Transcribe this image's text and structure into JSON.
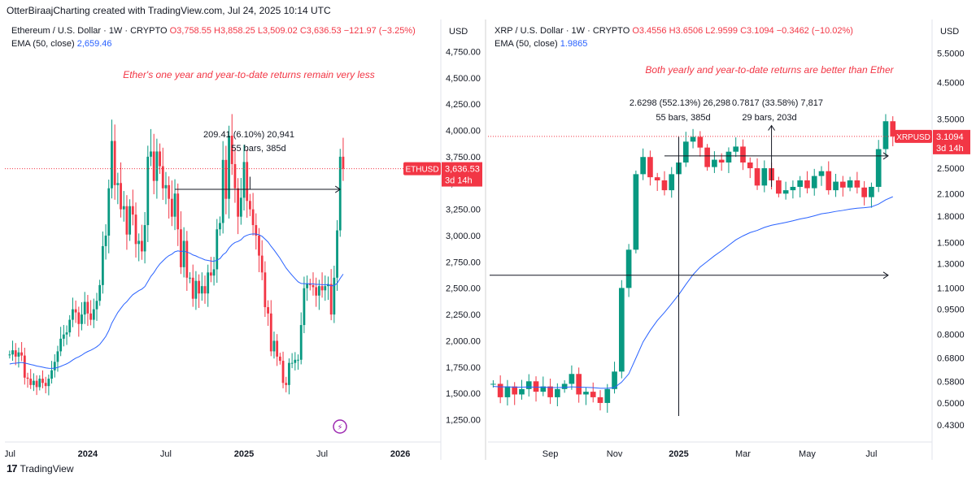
{
  "header": "OtterBiraajCharting created with TradingView.com, Jul 24, 2025 10:14 UTC",
  "footer_brand": "TradingView",
  "footer_logo": "17",
  "colors": {
    "up": "#089981",
    "down": "#f23645",
    "ema": "#2962ff",
    "text": "#131722",
    "annotation": "#f23645",
    "grid": "#f0f3fa"
  },
  "chart_data": [
    {
      "type": "candlestick",
      "symbol_line": "Ethereum / U.S. Dollar · 1W · CRYPTO",
      "ohlc": {
        "o": "O3,758.55",
        "h": "H3,858.25",
        "l": "L3,509.02",
        "c": "C3,636.53",
        "chg": "−121.97 (−3.25%)"
      },
      "ema_label": "EMA (50, close)",
      "ema_value": "2,659.46",
      "currency": "USD",
      "annotation": "Ether's one year and year-to-date returns remain very less",
      "measure_line1": "209.41 (6.10%) 20,941",
      "measure_line2": "55 bars, 385d",
      "price_tag": {
        "ticker": "ETHUSD",
        "price": "3,636.53",
        "time": "3d 14h",
        "value": 3636.53
      },
      "ylim": [
        1100,
        4900
      ],
      "y_ticks": [
        1250,
        1500,
        1750,
        2000,
        2250,
        2500,
        2750,
        3000,
        3250,
        3500,
        3750,
        4000,
        4250,
        4500,
        4750
      ],
      "y_tick_labels": [
        "1,250.00",
        "1,500.00",
        "1,750.00",
        "2,000.00",
        "2,250.00",
        "2,500.00",
        "2,750.00",
        "3,000.00",
        "3,250.00",
        "3,500.00",
        "3,750.00",
        "4,000.00",
        "4,250.00",
        "4,500.00",
        "4,750.00"
      ],
      "x_labels": [
        {
          "t": "Jul",
          "i": 0
        },
        {
          "t": "2024",
          "i": 26
        },
        {
          "t": "Jul",
          "i": 52
        },
        {
          "t": "2025",
          "i": 78
        },
        {
          "t": "Jul",
          "i": 104
        },
        {
          "t": "2026",
          "i": 130
        }
      ],
      "n_slots": 144,
      "closes": [
        1870,
        1910,
        1850,
        1890,
        1860,
        1650,
        1640,
        1580,
        1620,
        1560,
        1640,
        1600,
        1570,
        1640,
        1720,
        1800,
        1900,
        2020,
        2060,
        2080,
        2200,
        2300,
        2270,
        2160,
        2250,
        2370,
        2260,
        2200,
        2300,
        2380,
        2530,
        2900,
        3000,
        3450,
        3900,
        3480,
        3500,
        3250,
        3280,
        3010,
        3280,
        3200,
        2920,
        2950,
        2850,
        3100,
        3750,
        3800,
        3520,
        3800,
        3660,
        3450,
        3480,
        3350,
        3180,
        3400,
        3060,
        2700,
        2950,
        2600,
        2600,
        2400,
        2570,
        2450,
        2520,
        2450,
        2650,
        2620,
        2680,
        3060,
        3120,
        3720,
        3350,
        3950,
        3680,
        3450,
        3180,
        3360,
        3700,
        3330,
        3250,
        3100,
        3000,
        2810,
        2650,
        2320,
        2260,
        1900,
        2000,
        1850,
        1810,
        1600,
        1580,
        1790,
        1790,
        1820,
        1820,
        2150,
        2500,
        2540,
        2530,
        2510,
        2430,
        2520,
        2480,
        2520,
        2540,
        2250,
        2600,
        3050,
        3750,
        3636.53
      ]
    },
    {
      "type": "candlestick",
      "symbol_line": "XRP / U.S. Dollar · 1W · CRYPTO",
      "ohlc": {
        "o": "O3.4556",
        "h": "H3.6506",
        "l": "L2.9599",
        "c": "C3.1094",
        "chg": "−0.3462 (−10.02%)"
      },
      "ema_label": "EMA (50, close)",
      "ema_value": "1.9865",
      "currency": "USD",
      "annotation": "Both yearly and year-to-date returns are better than Ether",
      "measure1_line1": "2.6298 (552.13%) 26,298",
      "measure1_line2": "55 bars, 385d",
      "measure2_line1": "0.7817 (33.58%) 7,817",
      "measure2_line2": "29 bars, 203d",
      "price_tag": {
        "ticker": "XRPUSD",
        "price": "3.1094",
        "time": "3d 14h",
        "value": 3.1094
      },
      "scale": "log",
      "ylim": [
        0.4,
        6.2
      ],
      "y_ticks": [
        0.43,
        0.5,
        0.58,
        0.68,
        0.8,
        0.95,
        1.1,
        1.3,
        1.5,
        1.8,
        2.1,
        2.5,
        3.1094,
        3.5,
        4.5,
        5.5
      ],
      "y_tick_labels": [
        "0.4300",
        "0.5000",
        "0.5800",
        "0.6800",
        "0.8000",
        "0.9500",
        "1.1000",
        "1.3000",
        "1.5000",
        "1.8000",
        "2.1000",
        "2.5000",
        "",
        "3.5000",
        "4.5000",
        "5.5000"
      ],
      "x_labels": [
        {
          "t": "Sep",
          "i": 8
        },
        {
          "t": "Nov",
          "i": 17
        },
        {
          "t": "2025",
          "i": 26
        },
        {
          "t": "Mar",
          "i": 35
        },
        {
          "t": "May",
          "i": 44
        },
        {
          "t": "Jul",
          "i": 53
        }
      ],
      "n_slots": 62,
      "closes": [
        0.57,
        0.52,
        0.56,
        0.53,
        0.55,
        0.58,
        0.54,
        0.56,
        0.52,
        0.55,
        0.57,
        0.61,
        0.53,
        0.54,
        0.52,
        0.5,
        0.55,
        0.62,
        1.1,
        1.43,
        2.4,
        2.7,
        2.35,
        2.3,
        2.15,
        2.4,
        2.6,
        3.0,
        3.1,
        2.88,
        2.52,
        2.65,
        2.6,
        2.8,
        2.9,
        2.6,
        2.5,
        2.22,
        2.5,
        2.3,
        2.1,
        2.15,
        2.2,
        2.3,
        2.18,
        2.37,
        2.45,
        2.15,
        2.28,
        2.19,
        2.3,
        2.19,
        2.05,
        2.2,
        2.85,
        3.45,
        3.1094
      ]
    }
  ]
}
